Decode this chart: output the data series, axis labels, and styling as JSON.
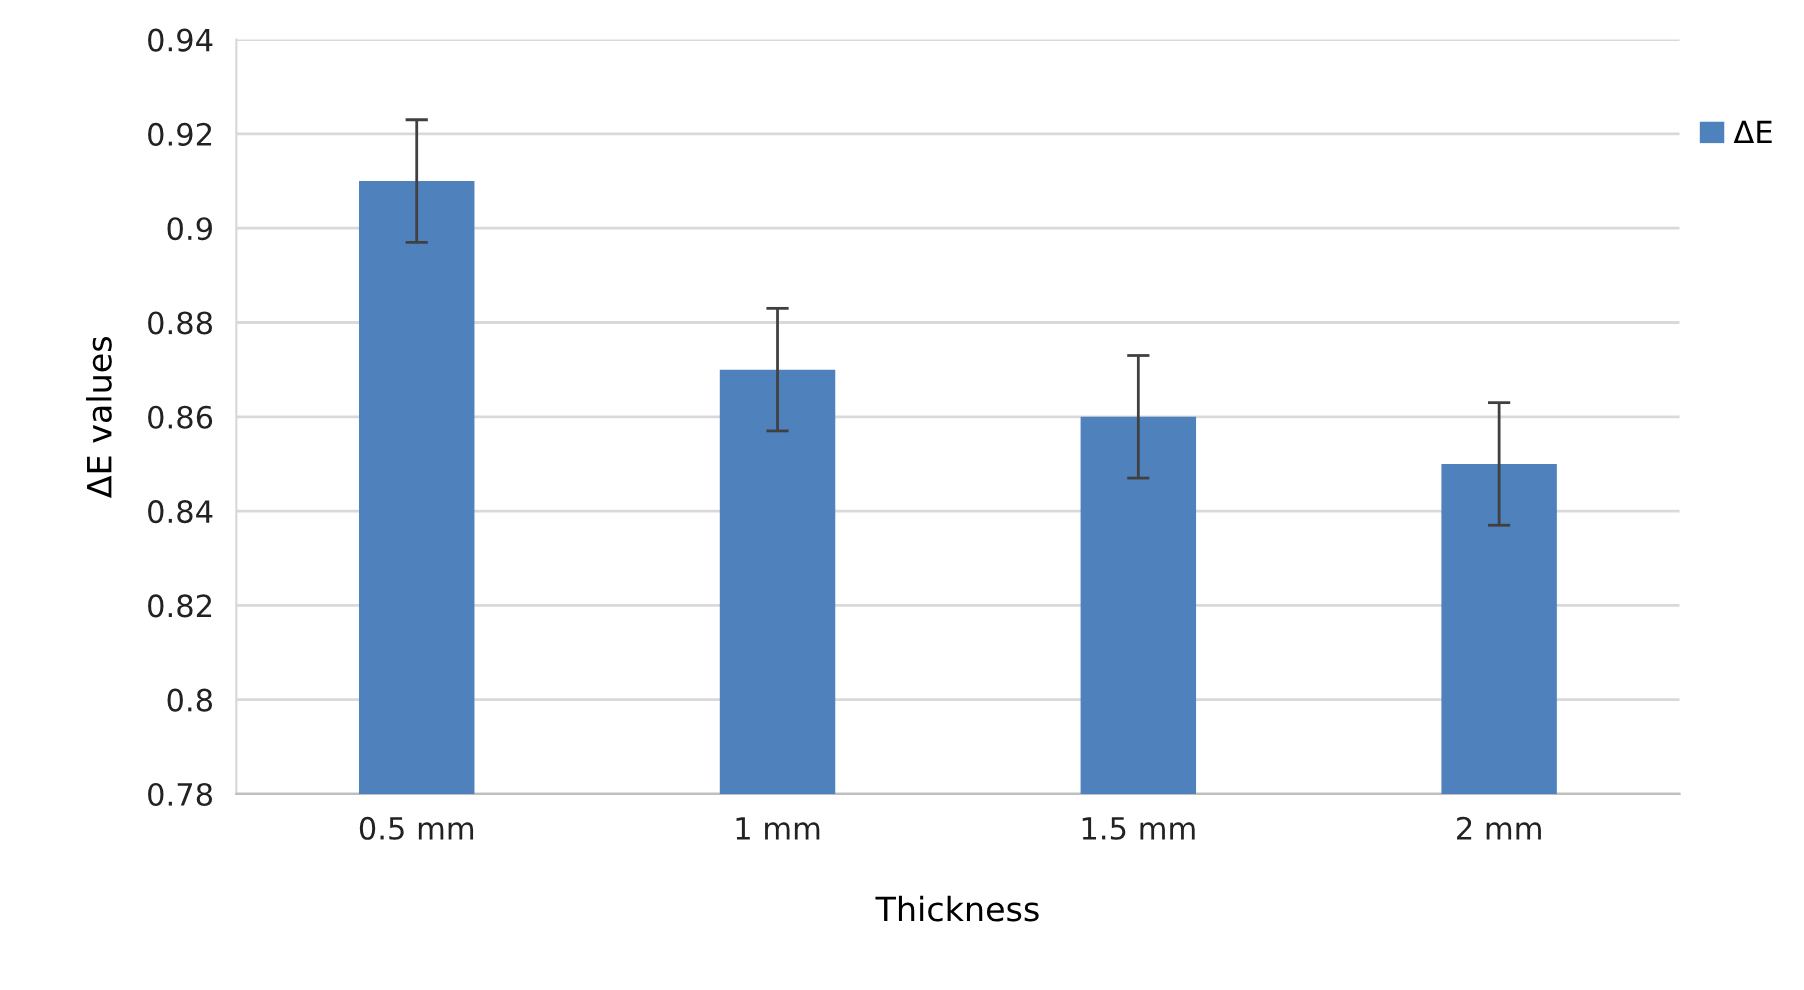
{
  "chart_data": {
    "type": "bar",
    "xlabel": "Thickness",
    "ylabel": "ΔE values",
    "categories": [
      "0.5 mm",
      "1 mm",
      "1.5 mm",
      "2 mm"
    ],
    "series": [
      {
        "name": "ΔE",
        "color": "#4f81bd",
        "values": [
          0.91,
          0.87,
          0.86,
          0.85
        ],
        "errors": [
          0.013,
          0.013,
          0.013,
          0.013
        ]
      }
    ],
    "ylim": [
      0.78,
      0.94
    ],
    "yticks": [
      0.78,
      0.8,
      0.82,
      0.84,
      0.86,
      0.88,
      0.9,
      0.92,
      0.94
    ],
    "grid": "y",
    "legend": "top right"
  }
}
